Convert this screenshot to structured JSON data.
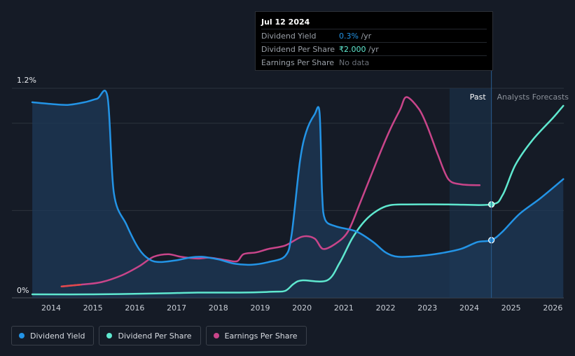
{
  "chart_data": {
    "type": "line",
    "y_axis": {
      "top_label": "1.2%",
      "bottom_label": "0%",
      "ylim": [
        0,
        1.2
      ]
    },
    "x_ticks": [
      "2014",
      "2015",
      "2016",
      "2017",
      "2018",
      "2019",
      "2020",
      "2021",
      "2022",
      "2023",
      "2024",
      "2025",
      "2026"
    ],
    "regions": {
      "past_label": "Past",
      "forecast_label": "Analysts Forecasts"
    },
    "series": [
      {
        "name": "Dividend Yield",
        "color": "#2394e6",
        "unit": "%",
        "points": [
          [
            2013.55,
            1.12
          ],
          [
            2014.0,
            1.11
          ],
          [
            2014.4,
            1.105
          ],
          [
            2014.8,
            1.12
          ],
          [
            2015.1,
            1.14
          ],
          [
            2015.35,
            1.15
          ],
          [
            2015.5,
            0.6
          ],
          [
            2015.8,
            0.42
          ],
          [
            2016.1,
            0.28
          ],
          [
            2016.35,
            0.22
          ],
          [
            2016.6,
            0.205
          ],
          [
            2017.0,
            0.215
          ],
          [
            2017.3,
            0.23
          ],
          [
            2017.6,
            0.235
          ],
          [
            2018.0,
            0.22
          ],
          [
            2018.4,
            0.195
          ],
          [
            2018.8,
            0.19
          ],
          [
            2019.2,
            0.205
          ],
          [
            2019.6,
            0.24
          ],
          [
            2019.75,
            0.36
          ],
          [
            2019.95,
            0.78
          ],
          [
            2020.1,
            0.95
          ],
          [
            2020.3,
            1.05
          ],
          [
            2020.42,
            1.06
          ],
          [
            2020.48,
            0.6
          ],
          [
            2020.55,
            0.45
          ],
          [
            2020.8,
            0.41
          ],
          [
            2021.3,
            0.38
          ],
          [
            2021.7,
            0.32
          ],
          [
            2022.0,
            0.26
          ],
          [
            2022.3,
            0.235
          ],
          [
            2022.8,
            0.24
          ],
          [
            2023.3,
            0.255
          ],
          [
            2023.8,
            0.28
          ],
          [
            2024.2,
            0.32
          ],
          [
            2024.53,
            0.33
          ],
          [
            2024.8,
            0.38
          ],
          [
            2025.2,
            0.48
          ],
          [
            2025.7,
            0.57
          ],
          [
            2026.25,
            0.68
          ]
        ]
      },
      {
        "name": "Dividend Per Share",
        "color": "#5fe8cf",
        "unit": "₹",
        "points": [
          [
            2013.55,
            0.02
          ],
          [
            2015.0,
            0.02
          ],
          [
            2016.5,
            0.025
          ],
          [
            2017.5,
            0.03
          ],
          [
            2018.5,
            0.03
          ],
          [
            2019.3,
            0.035
          ],
          [
            2019.6,
            0.04
          ],
          [
            2019.8,
            0.08
          ],
          [
            2020.0,
            0.1
          ],
          [
            2020.6,
            0.1
          ],
          [
            2020.9,
            0.2
          ],
          [
            2021.2,
            0.34
          ],
          [
            2021.5,
            0.44
          ],
          [
            2021.8,
            0.5
          ],
          [
            2022.1,
            0.53
          ],
          [
            2022.5,
            0.535
          ],
          [
            2023.5,
            0.535
          ],
          [
            2024.53,
            0.535
          ],
          [
            2024.8,
            0.59
          ],
          [
            2025.1,
            0.76
          ],
          [
            2025.5,
            0.9
          ],
          [
            2026.0,
            1.03
          ],
          [
            2026.25,
            1.1
          ]
        ]
      },
      {
        "name": "Earnings Per Share",
        "color": "#c9458a",
        "points": [
          [
            2014.25,
            0.065
          ],
          [
            2014.7,
            0.075
          ],
          [
            2015.2,
            0.09
          ],
          [
            2015.7,
            0.13
          ],
          [
            2016.1,
            0.18
          ],
          [
            2016.45,
            0.235
          ],
          [
            2016.8,
            0.25
          ],
          [
            2017.1,
            0.235
          ],
          [
            2017.5,
            0.225
          ],
          [
            2017.8,
            0.23
          ],
          [
            2018.2,
            0.215
          ],
          [
            2018.45,
            0.21
          ],
          [
            2018.6,
            0.25
          ],
          [
            2018.9,
            0.26
          ],
          [
            2019.2,
            0.28
          ],
          [
            2019.6,
            0.3
          ],
          [
            2020.0,
            0.35
          ],
          [
            2020.3,
            0.34
          ],
          [
            2020.5,
            0.28
          ],
          [
            2020.8,
            0.31
          ],
          [
            2021.1,
            0.38
          ],
          [
            2021.4,
            0.55
          ],
          [
            2021.8,
            0.79
          ],
          [
            2022.1,
            0.96
          ],
          [
            2022.35,
            1.08
          ],
          [
            2022.5,
            1.15
          ],
          [
            2022.8,
            1.08
          ],
          [
            2023.0,
            0.98
          ],
          [
            2023.25,
            0.82
          ],
          [
            2023.5,
            0.68
          ],
          [
            2023.8,
            0.65
          ],
          [
            2024.25,
            0.645
          ]
        ]
      }
    ],
    "markers": [
      {
        "series": "Dividend Yield",
        "x": 2024.53,
        "y": 0.33
      },
      {
        "series": "Dividend Per Share",
        "x": 2024.53,
        "y": 0.535
      }
    ]
  },
  "tooltip": {
    "date": "Jul 12 2024",
    "rows": [
      {
        "label": "Dividend Yield",
        "value": "0.3%",
        "suffix": " /yr"
      },
      {
        "label": "Dividend Per Share",
        "value": "₹2.000",
        "suffix": " /yr"
      },
      {
        "label": "Earnings Per Share",
        "value": "No data",
        "suffix": ""
      }
    ]
  },
  "legend": [
    {
      "label": "Dividend Yield",
      "color": "#2394e6"
    },
    {
      "label": "Dividend Per Share",
      "color": "#5fe8cf"
    },
    {
      "label": "Earnings Per Share",
      "color": "#c9458a"
    }
  ]
}
